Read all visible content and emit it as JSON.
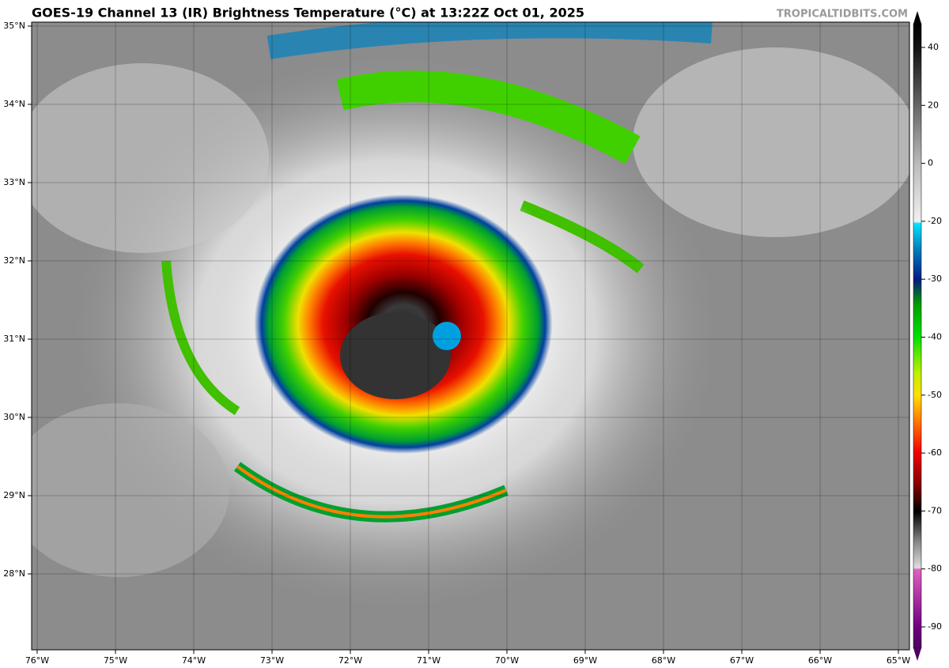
{
  "header": {
    "title": "GOES-19 Channel 13 (IR) Brightness Temperature (°C) at 13:22Z Oct 01, 2025",
    "watermark": "TROPICALTIDBITS.COM"
  },
  "map": {
    "lon_labels": [
      "76°W",
      "75°W",
      "74°W",
      "73°W",
      "72°W",
      "71°W",
      "70°W",
      "69°W",
      "68°W",
      "67°W",
      "66°W",
      "65°W"
    ],
    "lat_labels": [
      "35°N",
      "34°N",
      "33°N",
      "32°N",
      "31°N",
      "30°N",
      "29°N",
      "28°N"
    ]
  },
  "colorbar": {
    "ticks": [
      40,
      20,
      0,
      -20,
      -30,
      -40,
      -50,
      -60,
      -70,
      -80,
      -90
    ]
  }
}
